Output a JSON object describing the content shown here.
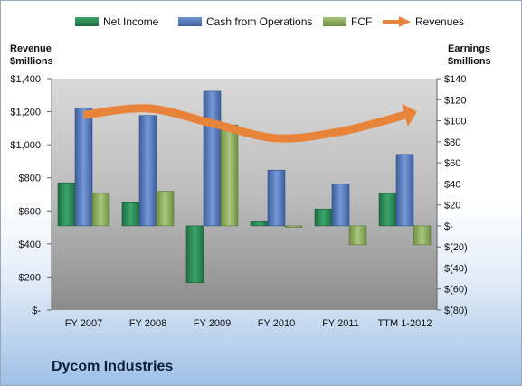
{
  "company": "Dycom Industries",
  "legend": [
    {
      "label": "Net Income",
      "color": "#2e8b57"
    },
    {
      "label": "Cash from Operations",
      "color": "#5b80c0"
    },
    {
      "label": "FCF",
      "color": "#8fb060"
    },
    {
      "label": "Revenues",
      "color": "#e8833a"
    }
  ],
  "axes": {
    "left_title": [
      "Revenue",
      "$millions"
    ],
    "right_title": [
      "Earnings",
      "$millions"
    ],
    "left_ticks": [
      "$1,400",
      "$1,200",
      "$1,000",
      "$800",
      "$600",
      "$400",
      "$200",
      "$-"
    ],
    "right_ticks": [
      "$140",
      "$120",
      "$100",
      "$80",
      "$60",
      "$40",
      "$20",
      "$-",
      "$(20)",
      "$(40)",
      "$(60)",
      "$(80)"
    ]
  },
  "chart_data": {
    "type": "bar",
    "categories": [
      "FY 2007",
      "FY 2008",
      "FY 2009",
      "FY 2010",
      "FY 2011",
      "TTM 1-2012"
    ],
    "series": [
      {
        "name": "Net Income",
        "axis": "right",
        "values": [
          41,
          22,
          -54,
          4,
          16,
          31
        ]
      },
      {
        "name": "Cash from Operations",
        "axis": "right",
        "values": [
          112,
          105,
          128,
          53,
          40,
          68
        ]
      },
      {
        "name": "FCF",
        "axis": "right",
        "values": [
          31,
          33,
          96,
          -1,
          -18,
          -18
        ]
      },
      {
        "name": "Revenues",
        "type": "line",
        "axis": "left",
        "values": [
          1180,
          1220,
          1130,
          1040,
          1080,
          1180
        ]
      }
    ],
    "left_ylim": [
      0,
      1400
    ],
    "right_ylim": [
      -80,
      140
    ],
    "grid": false,
    "legend_position": "top"
  }
}
